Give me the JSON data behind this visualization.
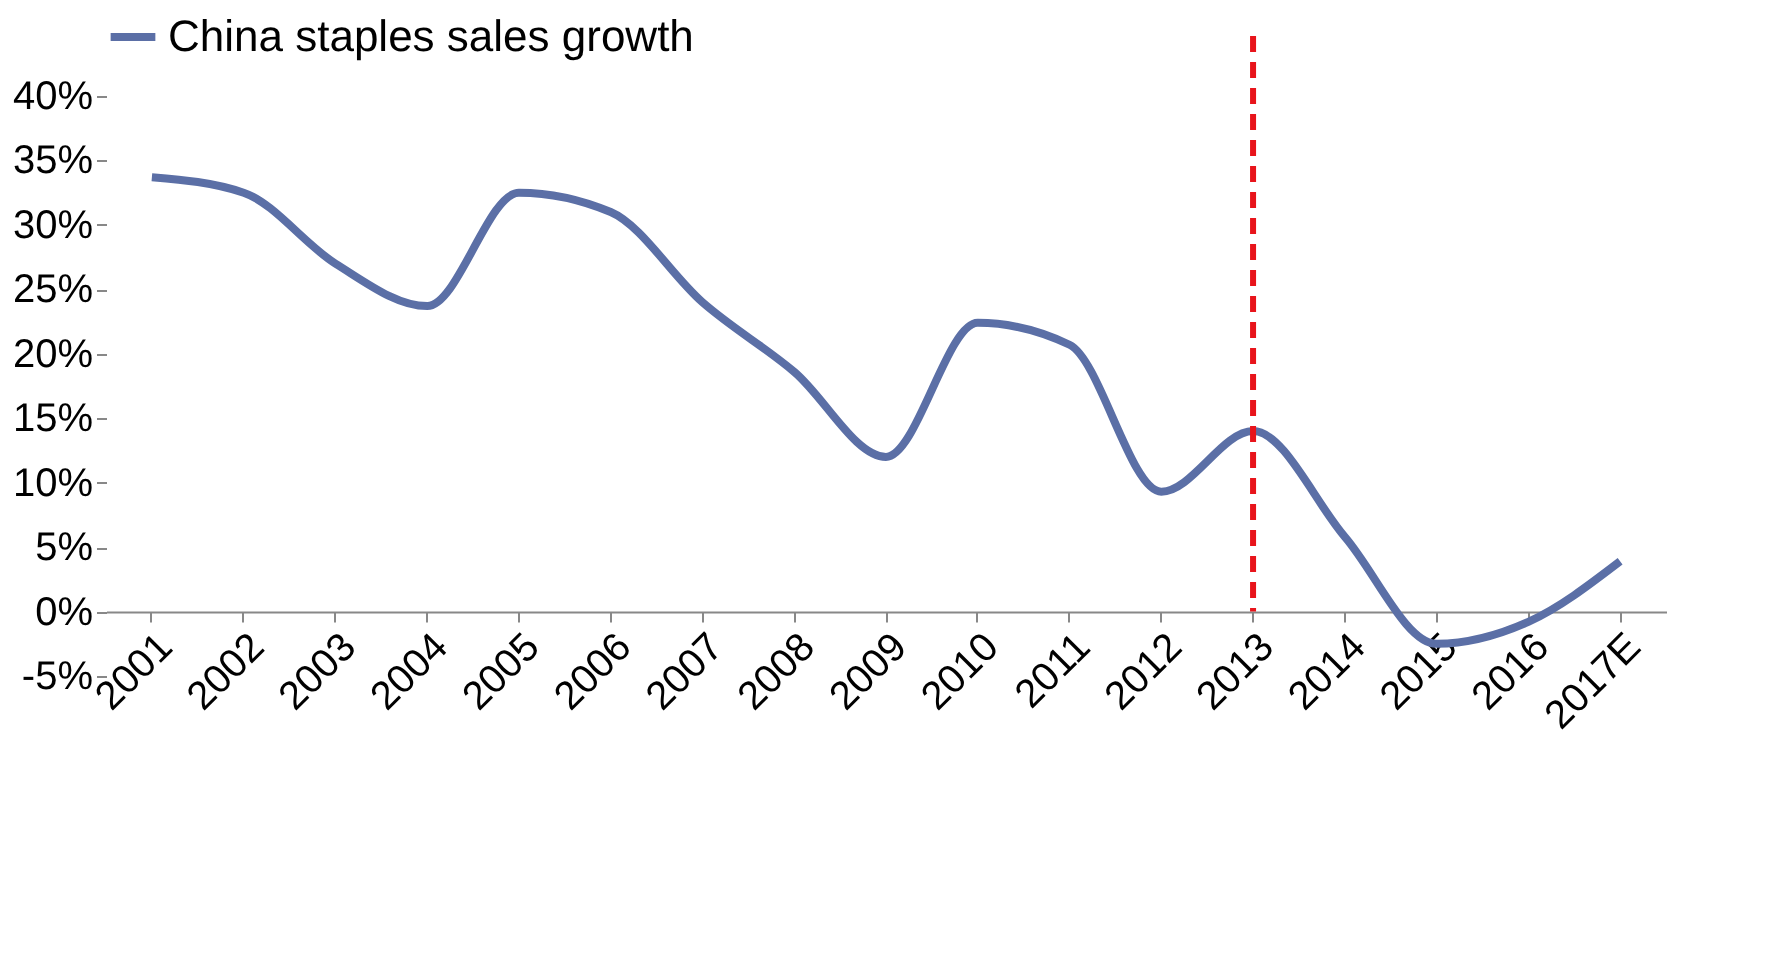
{
  "chart_data": {
    "type": "line",
    "categories": [
      "2001",
      "2002",
      "2003",
      "2004",
      "2005",
      "2006",
      "2007",
      "2008",
      "2009",
      "2010",
      "2011",
      "2012",
      "2013",
      "2014",
      "2015",
      "2016",
      "2017E"
    ],
    "series": [
      {
        "name": "China staples sales growth",
        "color": "#5b6fa6",
        "values": [
          33.7,
          32.5,
          27,
          23.7,
          32.5,
          31,
          24,
          18.6,
          12,
          22.4,
          20.7,
          9.3,
          14,
          5.8,
          -2.5,
          -0.8,
          3.9
        ]
      }
    ],
    "ylim": [
      -5,
      40
    ],
    "yticks": [
      {
        "value": -5,
        "label": "-5%"
      },
      {
        "value": 0,
        "label": "0%"
      },
      {
        "value": 5,
        "label": "5%"
      },
      {
        "value": 10,
        "label": "10%"
      },
      {
        "value": 15,
        "label": "15%"
      },
      {
        "value": 20,
        "label": "20%"
      },
      {
        "value": 25,
        "label": "25%"
      },
      {
        "value": 30,
        "label": "30%"
      },
      {
        "value": 35,
        "label": "35%"
      },
      {
        "value": 40,
        "label": "40%"
      }
    ],
    "ref_lines": [
      {
        "axis": "x",
        "value": "2013",
        "color": "#e8141b",
        "line_style": "dashed"
      }
    ],
    "legend": "top",
    "grid": false,
    "marker": "none",
    "line_style": "solid"
  }
}
